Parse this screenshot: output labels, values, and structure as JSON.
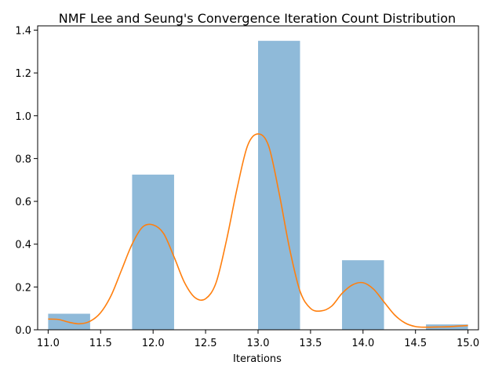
{
  "chart_data": {
    "type": "bar",
    "title": "NMF Lee and Seung's Convergence Iteration Count Distribution",
    "xlabel": "Iterations",
    "ylabel": "",
    "xlim": [
      10.9,
      15.1
    ],
    "ylim": [
      0,
      1.42
    ],
    "xticks": [
      11.0,
      11.5,
      12.0,
      12.5,
      13.0,
      13.5,
      14.0,
      14.5,
      15.0
    ],
    "xtick_labels": [
      "11.0",
      "11.5",
      "12.0",
      "12.5",
      "13.0",
      "13.5",
      "14.0",
      "14.5",
      "15.0"
    ],
    "yticks": [
      0.0,
      0.2,
      0.4,
      0.6,
      0.8,
      1.0,
      1.2,
      1.4
    ],
    "ytick_labels": [
      "0.0",
      "0.2",
      "0.4",
      "0.6",
      "0.8",
      "1.0",
      "1.2",
      "1.4"
    ],
    "grid": false,
    "bar_color": "#8fbad9",
    "line_color": "#ff7f0e",
    "bars": [
      {
        "x0": 11.0,
        "x1": 11.4,
        "value": 0.075
      },
      {
        "x0": 11.8,
        "x1": 12.2,
        "value": 0.725
      },
      {
        "x0": 13.0,
        "x1": 13.4,
        "value": 1.35
      },
      {
        "x0": 13.8,
        "x1": 14.2,
        "value": 0.325
      },
      {
        "x0": 14.6,
        "x1": 15.0,
        "value": 0.025
      }
    ],
    "kde": {
      "x": [
        11.0,
        11.1,
        11.2,
        11.3,
        11.4,
        11.5,
        11.6,
        11.7,
        11.8,
        11.9,
        12.0,
        12.1,
        12.2,
        12.3,
        12.4,
        12.5,
        12.6,
        12.7,
        12.8,
        12.9,
        13.0,
        13.1,
        13.2,
        13.3,
        13.4,
        13.5,
        13.6,
        13.7,
        13.8,
        13.9,
        14.0,
        14.1,
        14.2,
        14.3,
        14.4,
        14.5,
        14.6,
        14.7,
        14.8,
        14.9,
        15.0
      ],
      "y": [
        0.05,
        0.048,
        0.035,
        0.028,
        0.04,
        0.08,
        0.16,
        0.28,
        0.4,
        0.48,
        0.49,
        0.45,
        0.34,
        0.22,
        0.15,
        0.145,
        0.22,
        0.42,
        0.66,
        0.86,
        0.915,
        0.86,
        0.64,
        0.38,
        0.18,
        0.1,
        0.088,
        0.11,
        0.17,
        0.21,
        0.22,
        0.19,
        0.13,
        0.07,
        0.032,
        0.015,
        0.012,
        0.013,
        0.014,
        0.017,
        0.02
      ]
    }
  }
}
